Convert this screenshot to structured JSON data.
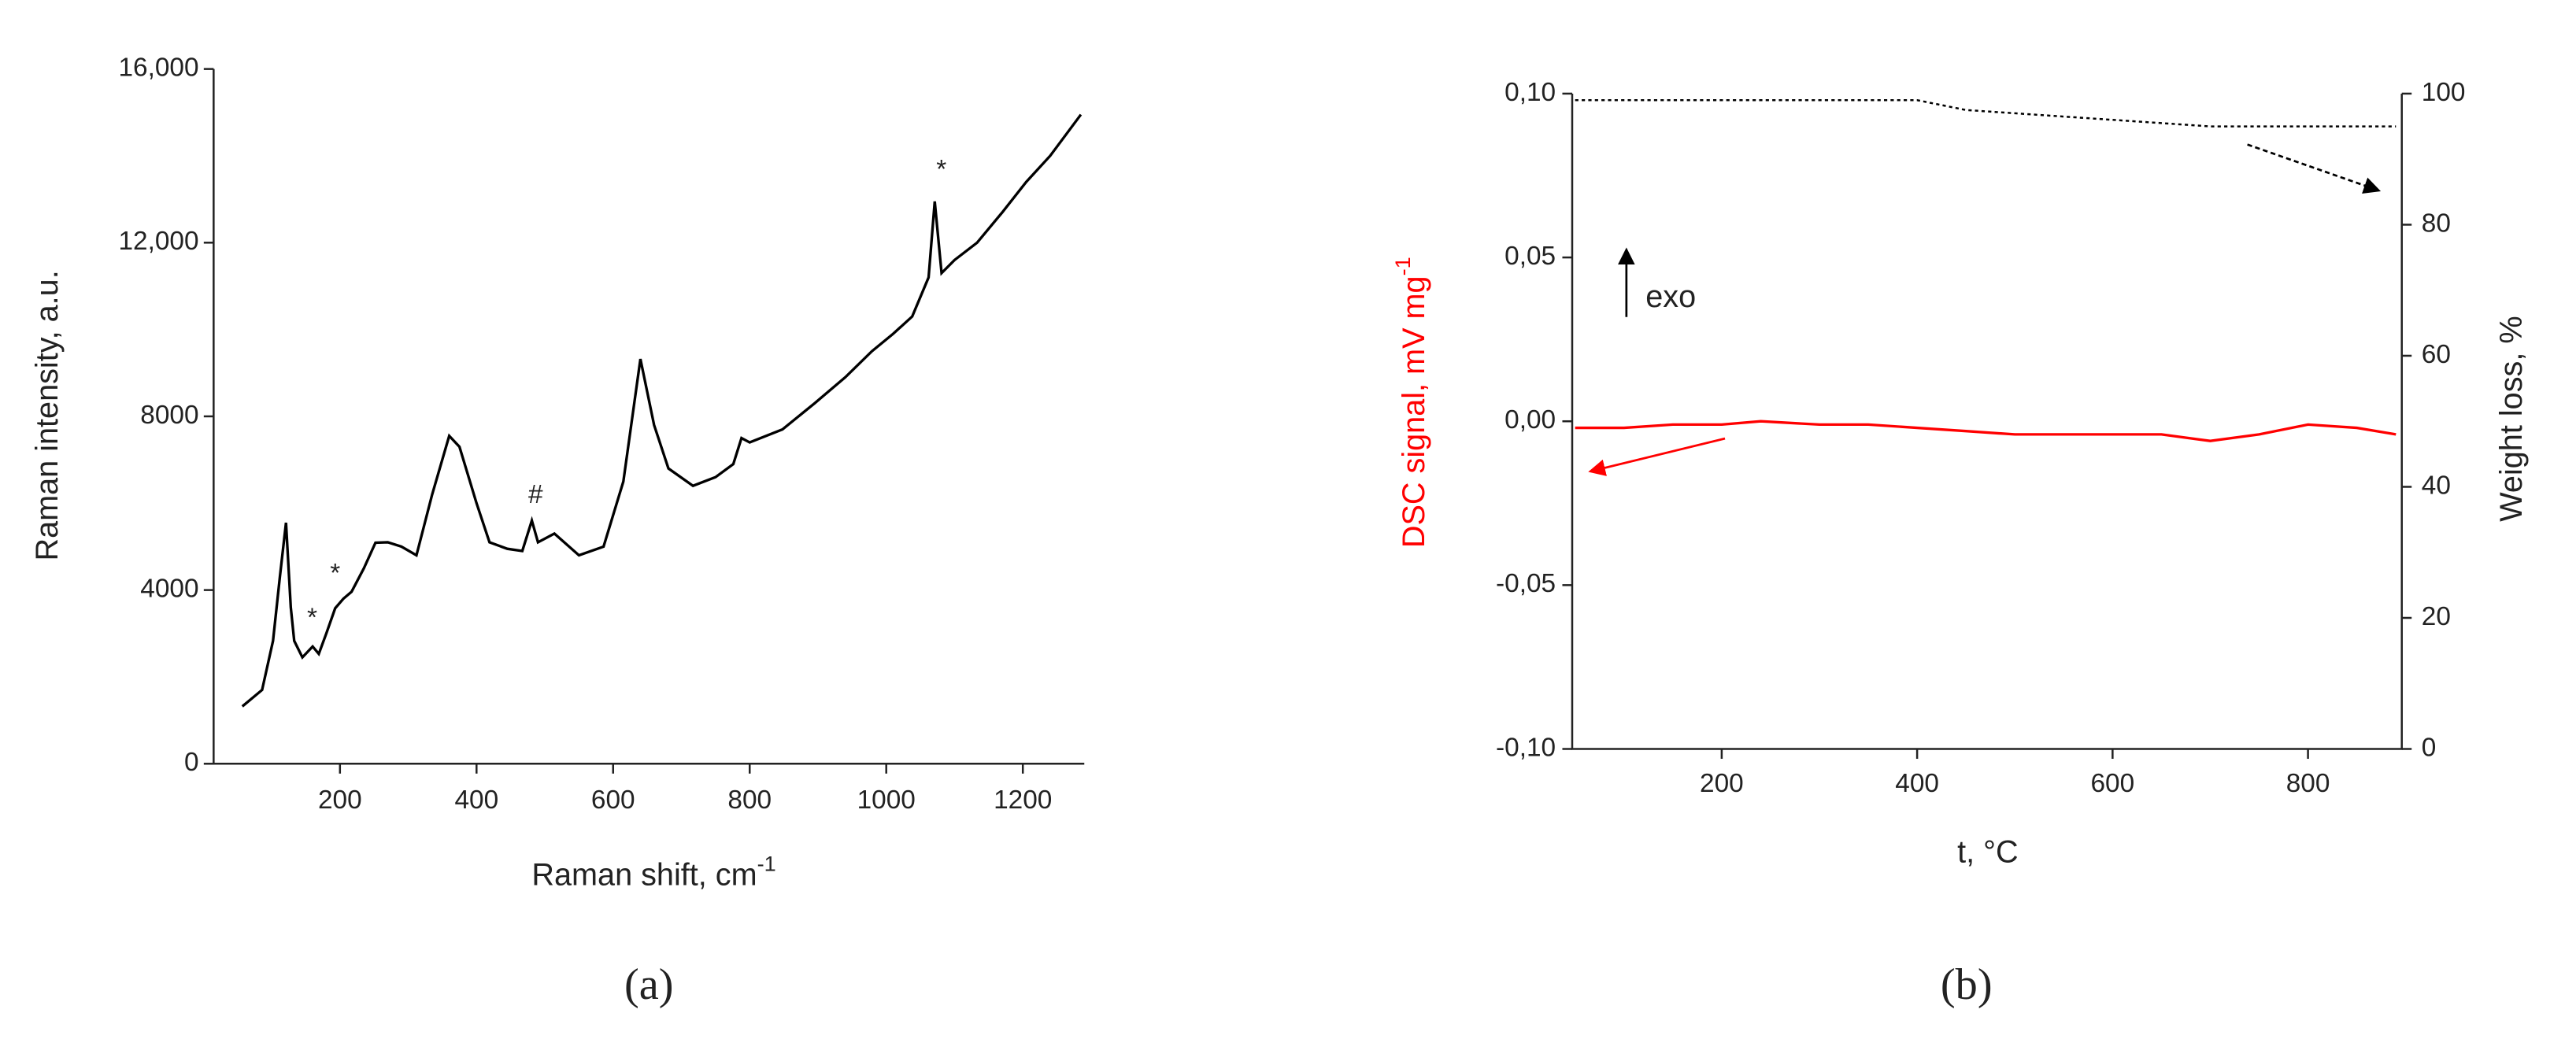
{
  "chart_data": [
    {
      "type": "line",
      "panel_label": "(a)",
      "x_label": "Raman shift, cm",
      "x_label_sup": "-1",
      "y_label": "Raman intensity, a.u.",
      "x": [
        57,
        86,
        102,
        112,
        121,
        128,
        133,
        145,
        160,
        169,
        180,
        193,
        205,
        217,
        235,
        252,
        270,
        290,
        312,
        335,
        360,
        375,
        400,
        419,
        445,
        467,
        481,
        490,
        514,
        550,
        586,
        615,
        640,
        660,
        681,
        717,
        750,
        776,
        788,
        800,
        848,
        895,
        940,
        979,
        1010,
        1038,
        1062,
        1071,
        1081,
        1100,
        1133,
        1170,
        1205,
        1240,
        1285
      ],
      "values": [
        1320,
        1700,
        2830,
        4300,
        5550,
        3600,
        2830,
        2450,
        2700,
        2530,
        3000,
        3580,
        3800,
        3960,
        4500,
        5090,
        5100,
        5000,
        4800,
        6200,
        7550,
        7300,
        6000,
        5100,
        4950,
        4900,
        5600,
        5100,
        5300,
        4800,
        5000,
        6500,
        9320,
        7800,
        6800,
        6400,
        6600,
        6900,
        7500,
        7400,
        7700,
        8300,
        8900,
        9500,
        9900,
        10300,
        11200,
        12950,
        11300,
        11600,
        12000,
        12700,
        13400,
        14000,
        14950
      ],
      "color": "#000000",
      "xlim": [
        15,
        1290
      ],
      "xticks": [
        200,
        400,
        600,
        800,
        1000,
        1200
      ],
      "ylim": [
        0,
        16000
      ],
      "yticks": [
        0,
        4000,
        8000,
        {
          "value": 12000,
          "label": "12,000"
        },
        {
          "value": 16000,
          "label": "16,000"
        }
      ],
      "annotations": [
        "*",
        "*",
        "#",
        "*"
      ]
    },
    {
      "type": "dual-line",
      "panel_label": "(b)",
      "x_label": "t, °C",
      "y_label": "DSC signal, mV mg",
      "y_label_sup": "-1",
      "y2_label": "Weight loss, %",
      "annotations": [
        "exo"
      ],
      "x": [
        50,
        100,
        150,
        200,
        240,
        300,
        350,
        400,
        450,
        500,
        550,
        600,
        650,
        700,
        750,
        800,
        850,
        890
      ],
      "series": [
        {
          "color": "#ff0000",
          "values": [
            -0.002,
            -0.002,
            -0.001,
            -0.001,
            0.0,
            -0.001,
            -0.001,
            -0.002,
            -0.003,
            -0.004,
            -0.004,
            -0.004,
            -0.004,
            -0.006,
            -0.004,
            -0.001,
            -0.002,
            -0.004
          ]
        },
        {
          "color": "#000000",
          "axis": "y2",
          "dashed": true,
          "values": [
            99,
            99,
            99,
            99,
            99,
            99,
            99,
            99,
            97.5,
            97,
            96.5,
            96,
            95.5,
            95,
            95,
            95,
            95,
            95
          ]
        }
      ],
      "xlim": [
        47,
        896
      ],
      "xticks": [
        200,
        400,
        600,
        800
      ],
      "ylim": [
        -0.1,
        0.1
      ],
      "yticks": [
        {
          "value": -0.1,
          "label": "-0,10"
        },
        {
          "value": -0.05,
          "label": "-0,05"
        },
        {
          "value": 0,
          "label": "0,00"
        },
        {
          "value": 0.05,
          "label": "0,05"
        },
        {
          "value": 0.1,
          "label": "0,10"
        }
      ],
      "y2lim": [
        0,
        100
      ],
      "y2ticks": [
        0,
        20,
        40,
        60,
        80,
        100
      ]
    }
  ]
}
